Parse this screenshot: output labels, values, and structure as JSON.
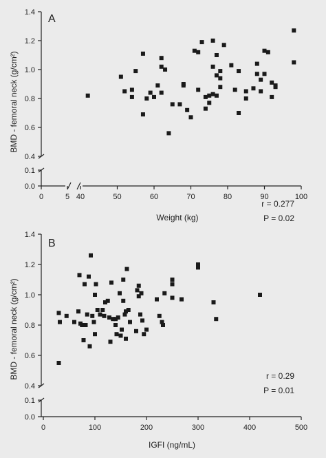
{
  "chart_data": [
    {
      "type": "scatter",
      "panel_label": "A",
      "xlabel": "Weight (kg)",
      "ylabel": "BMD - femoral neck (g/cm²)",
      "x_ticks": [
        0,
        5,
        40,
        50,
        60,
        70,
        80,
        90,
        100
      ],
      "x_tick_labels": [
        "0",
        "5",
        "40",
        "50",
        "60",
        "70",
        "80",
        "90",
        "100"
      ],
      "y_ticks": [
        0.0,
        0.1,
        0.4,
        0.6,
        0.8,
        1.0,
        1.2,
        1.4
      ],
      "y_tick_labels": [
        "0.0",
        "0.1",
        "0.4",
        "0.6",
        "0.8",
        "1.0",
        "1.2",
        "1.4"
      ],
      "x_axis_break": [
        5,
        40
      ],
      "y_axis_break": [
        0.1,
        0.4
      ],
      "stats": {
        "r": "r = 0.277",
        "p": "P = 0.02"
      },
      "points": [
        [
          42,
          0.82
        ],
        [
          51,
          0.95
        ],
        [
          52,
          0.85
        ],
        [
          54,
          0.86
        ],
        [
          54,
          0.81
        ],
        [
          55,
          0.99
        ],
        [
          57,
          1.11
        ],
        [
          57,
          0.69
        ],
        [
          58,
          0.8
        ],
        [
          59,
          0.84
        ],
        [
          60,
          0.81
        ],
        [
          61,
          0.89
        ],
        [
          62,
          0.84
        ],
        [
          62,
          1.02
        ],
        [
          62,
          1.08
        ],
        [
          63,
          1.0
        ],
        [
          64,
          0.56
        ],
        [
          65,
          0.76
        ],
        [
          67,
          0.76
        ],
        [
          68,
          0.89
        ],
        [
          68,
          0.9
        ],
        [
          69,
          0.72
        ],
        [
          70,
          0.67
        ],
        [
          71,
          1.13
        ],
        [
          72,
          1.12
        ],
        [
          72,
          0.86
        ],
        [
          73,
          1.19
        ],
        [
          74,
          0.81
        ],
        [
          74,
          0.73
        ],
        [
          75,
          0.77
        ],
        [
          75,
          0.82
        ],
        [
          76,
          1.2
        ],
        [
          76,
          0.83
        ],
        [
          76,
          1.02
        ],
        [
          77,
          1.1
        ],
        [
          77,
          0.96
        ],
        [
          77,
          0.82
        ],
        [
          78,
          0.88
        ],
        [
          78,
          0.99
        ],
        [
          78,
          0.94
        ],
        [
          79,
          1.17
        ],
        [
          81,
          1.03
        ],
        [
          82,
          0.86
        ],
        [
          83,
          0.99
        ],
        [
          83,
          0.7
        ],
        [
          85,
          0.85
        ],
        [
          85,
          0.8
        ],
        [
          87,
          0.87
        ],
        [
          88,
          1.04
        ],
        [
          88,
          0.97
        ],
        [
          89,
          0.93
        ],
        [
          89,
          0.85
        ],
        [
          90,
          1.13
        ],
        [
          90,
          0.97
        ],
        [
          91,
          1.12
        ],
        [
          92,
          0.91
        ],
        [
          92,
          0.81
        ],
        [
          93,
          0.89
        ],
        [
          93,
          0.88
        ],
        [
          98,
          1.27
        ],
        [
          98,
          1.05
        ]
      ]
    },
    {
      "type": "scatter",
      "panel_label": "B",
      "xlabel": "IGFI (ng/mL)",
      "ylabel": "BMD - femoral neck (g/cm²)",
      "x_ticks": [
        0,
        100,
        200,
        300,
        400,
        500
      ],
      "x_tick_labels": [
        "0",
        "100",
        "200",
        "300",
        "400",
        "500"
      ],
      "y_ticks": [
        0.0,
        0.1,
        0.4,
        0.6,
        0.8,
        1.0,
        1.2,
        1.4
      ],
      "y_tick_labels": [
        "0.0",
        "0.1",
        "0.4",
        "0.6",
        "0.8",
        "1.0",
        "1.2",
        "1.4"
      ],
      "y_axis_break": [
        0.1,
        0.4
      ],
      "stats": {
        "r": "r = 0.29",
        "p": "P = 0.01"
      },
      "points": [
        [
          30,
          0.55
        ],
        [
          30,
          0.88
        ],
        [
          32,
          0.82
        ],
        [
          45,
          0.86
        ],
        [
          60,
          0.82
        ],
        [
          68,
          0.89
        ],
        [
          70,
          1.13
        ],
        [
          72,
          0.81
        ],
        [
          75,
          0.8
        ],
        [
          78,
          0.7
        ],
        [
          80,
          1.07
        ],
        [
          82,
          0.8
        ],
        [
          85,
          0.87
        ],
        [
          88,
          1.12
        ],
        [
          90,
          0.66
        ],
        [
          92,
          1.26
        ],
        [
          95,
          0.86
        ],
        [
          98,
          0.82
        ],
        [
          100,
          1.0
        ],
        [
          100,
          0.74
        ],
        [
          102,
          1.07
        ],
        [
          105,
          0.9
        ],
        [
          110,
          0.87
        ],
        [
          115,
          0.9
        ],
        [
          118,
          0.86
        ],
        [
          120,
          0.95
        ],
        [
          125,
          0.96
        ],
        [
          128,
          0.85
        ],
        [
          130,
          0.69
        ],
        [
          132,
          1.08
        ],
        [
          135,
          0.84
        ],
        [
          140,
          0.84
        ],
        [
          140,
          0.8
        ],
        [
          142,
          0.74
        ],
        [
          145,
          0.85
        ],
        [
          148,
          1.01
        ],
        [
          150,
          0.73
        ],
        [
          152,
          0.77
        ],
        [
          155,
          1.1
        ],
        [
          155,
          0.96
        ],
        [
          158,
          0.87
        ],
        [
          160,
          0.71
        ],
        [
          160,
          0.89
        ],
        [
          162,
          1.17
        ],
        [
          165,
          0.9
        ],
        [
          168,
          0.82
        ],
        [
          180,
          0.76
        ],
        [
          182,
          1.03
        ],
        [
          185,
          0.99
        ],
        [
          185,
          1.06
        ],
        [
          188,
          0.87
        ],
        [
          190,
          1.01
        ],
        [
          192,
          0.83
        ],
        [
          195,
          0.74
        ],
        [
          200,
          0.77
        ],
        [
          220,
          0.97
        ],
        [
          225,
          0.86
        ],
        [
          230,
          0.82
        ],
        [
          232,
          0.8
        ],
        [
          235,
          1.01
        ],
        [
          250,
          1.1
        ],
        [
          250,
          1.07
        ],
        [
          250,
          0.98
        ],
        [
          268,
          0.97
        ],
        [
          300,
          1.2
        ],
        [
          300,
          1.18
        ],
        [
          330,
          0.95
        ],
        [
          335,
          0.84
        ],
        [
          420,
          1.0
        ]
      ]
    }
  ]
}
